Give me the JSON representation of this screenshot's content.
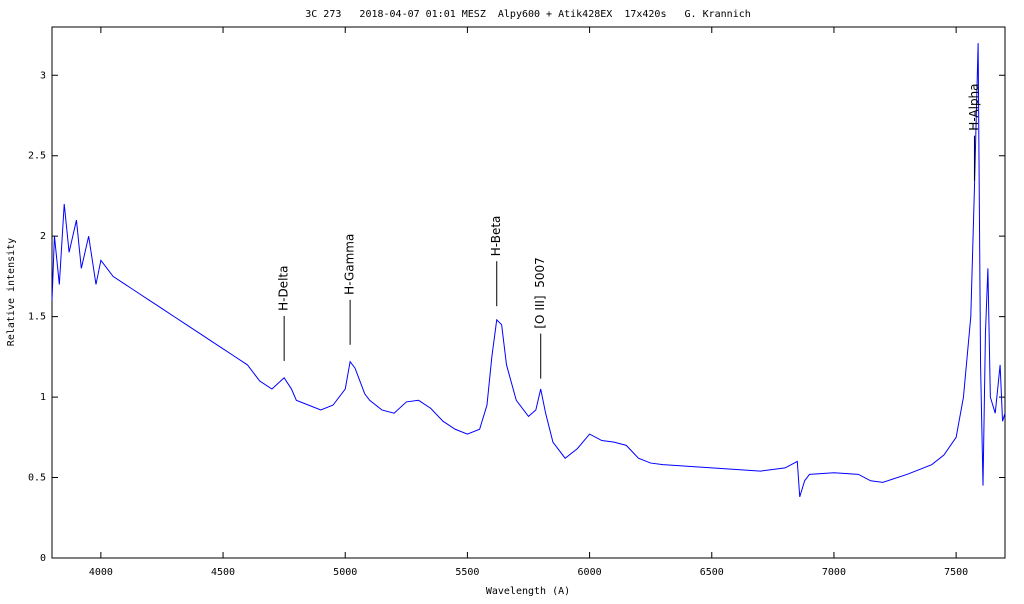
{
  "chart_data": {
    "type": "line",
    "title": "3C 273   2018-04-07 01:01 MESZ  Alpy600 + Atik428EX  17x420s   G. Krannich",
    "x_label": "Wavelength (A)",
    "y_label": "Relative intensity",
    "x": [
      3800,
      3810,
      3830,
      3850,
      3870,
      3900,
      3920,
      3950,
      3980,
      4000,
      4050,
      4100,
      4150,
      4200,
      4250,
      4300,
      4350,
      4400,
      4450,
      4500,
      4550,
      4600,
      4650,
      4700,
      4750,
      4780,
      4800,
      4850,
      4900,
      4950,
      5000,
      5020,
      5040,
      5080,
      5100,
      5150,
      5200,
      5250,
      5300,
      5350,
      5400,
      5450,
      5500,
      5550,
      5580,
      5600,
      5620,
      5640,
      5660,
      5700,
      5750,
      5780,
      5800,
      5820,
      5850,
      5900,
      5950,
      6000,
      6050,
      6100,
      6150,
      6200,
      6250,
      6300,
      6400,
      6500,
      6600,
      6700,
      6800,
      6850,
      6860,
      6880,
      6900,
      7000,
      7100,
      7150,
      7200,
      7300,
      7400,
      7450,
      7500,
      7530,
      7560,
      7575,
      7590,
      7600,
      7610,
      7620,
      7630,
      7640,
      7660,
      7680,
      7690,
      7700
    ],
    "series": [
      {
        "name": "Spectrum",
        "color": "#0000ff",
        "values": [
          1.6,
          2.0,
          1.7,
          2.2,
          1.9,
          2.1,
          1.8,
          2.0,
          1.7,
          1.85,
          1.75,
          1.7,
          1.65,
          1.6,
          1.55,
          1.5,
          1.45,
          1.4,
          1.35,
          1.3,
          1.25,
          1.2,
          1.1,
          1.05,
          1.12,
          1.05,
          0.98,
          0.95,
          0.92,
          0.95,
          1.05,
          1.22,
          1.18,
          1.02,
          0.98,
          0.92,
          0.9,
          0.97,
          0.98,
          0.93,
          0.85,
          0.8,
          0.77,
          0.8,
          0.95,
          1.25,
          1.48,
          1.45,
          1.2,
          0.98,
          0.88,
          0.92,
          1.05,
          0.9,
          0.72,
          0.62,
          0.68,
          0.77,
          0.73,
          0.72,
          0.7,
          0.62,
          0.59,
          0.58,
          0.57,
          0.56,
          0.55,
          0.54,
          0.56,
          0.6,
          0.38,
          0.48,
          0.52,
          0.53,
          0.52,
          0.48,
          0.47,
          0.52,
          0.58,
          0.64,
          0.75,
          1.0,
          1.5,
          2.3,
          3.2,
          1.2,
          0.45,
          1.4,
          1.8,
          1.0,
          0.9,
          1.2,
          0.85,
          0.9
        ]
      }
    ],
    "annotations": [
      {
        "text": "H-Delta",
        "x": 4750,
        "y": 1.2
      },
      {
        "text": "H-Gamma",
        "x": 5020,
        "y": 1.3
      },
      {
        "text": "H-Beta",
        "x": 5620,
        "y": 1.54
      },
      {
        "text": "[O III]  5007",
        "x": 5800,
        "y": 1.09
      },
      {
        "text": "H-Alpha",
        "x": 7575,
        "y": 2.32
      }
    ],
    "xlim": [
      3800,
      7700
    ],
    "xticks": [
      4000,
      4500,
      5000,
      5500,
      6000,
      6500,
      7000,
      7500
    ],
    "ylim": [
      0,
      3.3
    ],
    "yticks": [
      0,
      0.5,
      1,
      1.5,
      2,
      2.5,
      3
    ]
  }
}
